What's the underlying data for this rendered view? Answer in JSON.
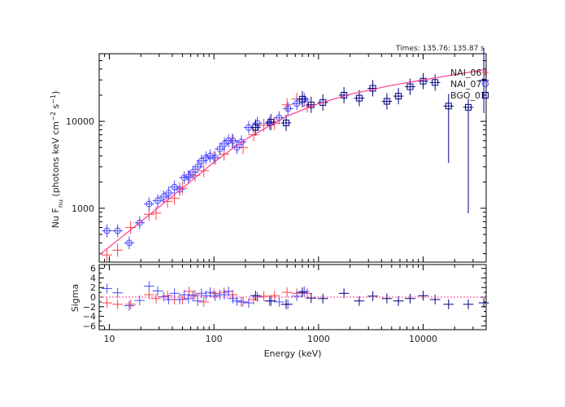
{
  "chart_data": [
    {
      "type": "scatter",
      "panel": "spectrum",
      "annotation": "Times: 135.76: 135.87  s",
      "ylabel": "Nu F<sub>nu</sub> (photons keV cm^-2 s^-1)",
      "ylabel_parts": {
        "a": "Nu F",
        "b": "nu",
        "c": " (photons keV cm",
        "d": "−2",
        "e": " s",
        "f": "−1",
        "g": ")"
      },
      "xscale": "log",
      "yscale": "log",
      "xlim": [
        8,
        40000
      ],
      "ylim": [
        240,
        60000
      ],
      "y_tick_labels": [
        {
          "v": 1000,
          "label": "1000"
        },
        {
          "v": 10000,
          "label": "10000"
        }
      ],
      "legend": [
        {
          "name": "NAI_06",
          "marker": "+",
          "color": "#ff4040"
        },
        {
          "name": "NAI_07",
          "marker": "o",
          "color": "#4a4aff"
        },
        {
          "name": "BGO_01",
          "marker": "square",
          "color": "#000080"
        }
      ],
      "model_color": "#ff3a8c",
      "model": {
        "x": [
          8,
          20,
          50,
          100,
          200,
          500,
          1000,
          2000,
          5000,
          10000,
          20000,
          40000
        ],
        "y": [
          290,
          700,
          1700,
          3400,
          6200,
          11500,
          16000,
          20500,
          26000,
          30000,
          34500,
          39500
        ]
      },
      "series": [
        {
          "name": "NAI_06",
          "marker": "+",
          "color": "#ff4040",
          "x": [
            9.5,
            12,
            16,
            24,
            28,
            36,
            42,
            50,
            58,
            66,
            80,
            100,
            125,
            150,
            190,
            240,
            300,
            380,
            500,
            620,
            780
          ],
          "y": [
            290,
            330,
            600,
            850,
            880,
            1200,
            1300,
            1700,
            2300,
            2400,
            2700,
            3800,
            4200,
            6000,
            5000,
            7000,
            9000,
            9500,
            15500,
            18000,
            15000
          ]
        },
        {
          "name": "NAI_07",
          "marker": "o",
          "color": "#4a4aff",
          "x": [
            9.5,
            12,
            15.5,
            19.5,
            24,
            29,
            33,
            37,
            42,
            47,
            52,
            57,
            63,
            70,
            76,
            84,
            92,
            103,
            114,
            126,
            138,
            152,
            166,
            183,
            215,
            260,
            340,
            420,
            510,
            620,
            730
          ],
          "y": [
            550,
            550,
            400,
            680,
            1120,
            1220,
            1350,
            1500,
            1750,
            1650,
            2250,
            2300,
            2600,
            3000,
            3500,
            3800,
            4000,
            3800,
            4800,
            5500,
            6000,
            6000,
            5000,
            5800,
            8500,
            9500,
            9500,
            11000,
            14000,
            16000,
            18000
          ]
        },
        {
          "name": "BGO_01",
          "marker": "square",
          "color": "#000080",
          "x": [
            250,
            350,
            490,
            700,
            850,
            1100,
            1750,
            2450,
            3300,
            4500,
            5800,
            7500,
            10000,
            13000,
            17500,
            27000,
            38000
          ],
          "y": [
            8500,
            9800,
            9600,
            18000,
            15500,
            16500,
            20000,
            18500,
            24000,
            17000,
            19500,
            25000,
            29000,
            28000,
            15000,
            14500,
            29500
          ]
        }
      ]
    },
    {
      "type": "scatter",
      "panel": "residuals",
      "xlabel": "Energy (keV)",
      "ylabel": "Sigma",
      "xscale": "log",
      "xlim": [
        8,
        40000
      ],
      "ylim": [
        -6.8,
        6.8
      ],
      "y_ticks": [
        6,
        4,
        2,
        0,
        -2,
        -4,
        -6
      ],
      "y_tick_labels": [
        "6",
        "4",
        "2",
        "0",
        "−2",
        "−4",
        "−6"
      ],
      "x_tick_labels": [
        {
          "v": 10,
          "label": "10"
        },
        {
          "v": 100,
          "label": "100"
        },
        {
          "v": 1000,
          "label": "1000"
        },
        {
          "v": 10000,
          "label": "10000"
        }
      ],
      "zero_line_color": "#ff3a8c",
      "series": [
        {
          "name": "NAI_06",
          "color": "#ff4040",
          "x": [
            9.5,
            12,
            16,
            24,
            28,
            36,
            42,
            50,
            58,
            66,
            80,
            100,
            125,
            150,
            190,
            240,
            300,
            380,
            500,
            620,
            780
          ],
          "y": [
            -1.2,
            -1.5,
            -1.5,
            0.5,
            -0.3,
            0.3,
            -0.5,
            -0.5,
            1.2,
            0.5,
            -1.0,
            0.8,
            1.0,
            0.5,
            -1.0,
            -0.5,
            0.2,
            0.3,
            1.0,
            0.8,
            0.8
          ]
        },
        {
          "name": "NAI_07",
          "color": "#4a4aff",
          "x": [
            9.5,
            12,
            15.5,
            19.5,
            24,
            29,
            33,
            37,
            42,
            47,
            52,
            57,
            63,
            70,
            76,
            84,
            92,
            103,
            114,
            126,
            138,
            152,
            166,
            183,
            215,
            260,
            340,
            420,
            510,
            620,
            730
          ],
          "y": [
            1.8,
            0.9,
            -1.8,
            -0.7,
            2.3,
            1.3,
            0.1,
            -0.5,
            0.8,
            -0.5,
            0.5,
            -0.3,
            0.3,
            -0.8,
            0.8,
            0.3,
            1.0,
            0.2,
            0.5,
            0.5,
            1.2,
            -0.3,
            -0.8,
            -1.0,
            -1.2,
            0.0,
            -0.8,
            -1.0,
            -1.5,
            0.2,
            1.2
          ]
        },
        {
          "name": "BGO_01",
          "color": "#000080",
          "x": [
            250,
            350,
            490,
            700,
            850,
            1100,
            1750,
            2450,
            3300,
            4500,
            5800,
            7500,
            10000,
            13000,
            17500,
            27000,
            38000
          ],
          "y": [
            0.3,
            -0.8,
            -1.5,
            1.0,
            -0.2,
            -0.3,
            0.8,
            -0.8,
            0.2,
            -0.3,
            -0.8,
            -0.3,
            0.3,
            -0.5,
            -1.5,
            -1.5,
            -1.2
          ]
        }
      ]
    }
  ]
}
